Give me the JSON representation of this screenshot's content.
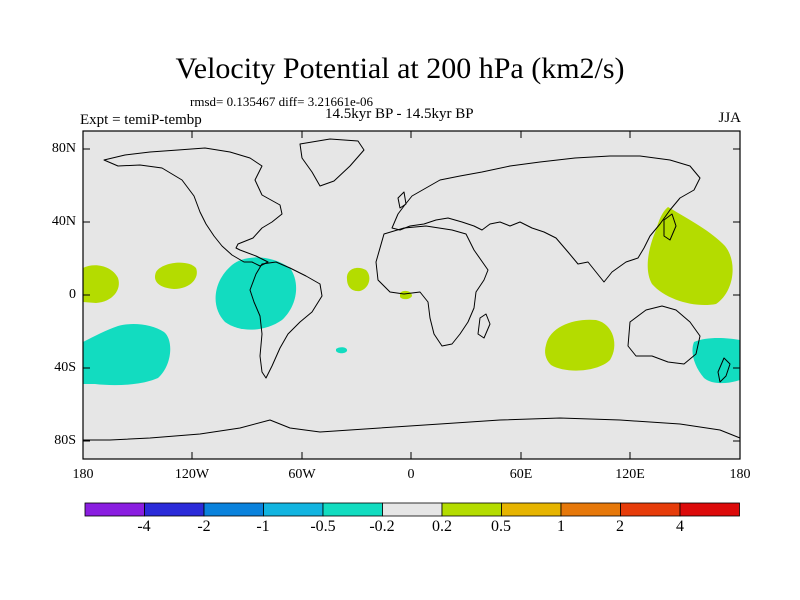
{
  "title": "Velocity Potential at 200 hPa (km2/s)",
  "stats": "rmsd= 0.135467 diff= 3.21661e-06",
  "experiment": "Expt = temiP-tembp",
  "period": "14.5kyr BP - 14.5kyr BP",
  "season": "JJA",
  "map": {
    "background_color": "#e6e6e6",
    "coast_color": "#000000",
    "lat_labels": [
      "80N",
      "40N",
      "0",
      "40S",
      "80S"
    ],
    "lon_labels": [
      "180",
      "120W",
      "60W",
      "0",
      "60E",
      "120E",
      "180"
    ]
  },
  "colorbar": {
    "colors": [
      "#8a1ee0",
      "#2b2bd9",
      "#0a82dc",
      "#12b4e0",
      "#12dcc0",
      "#e6e6e6",
      "#b4dc00",
      "#e6b400",
      "#e6780a",
      "#e63c0a",
      "#dc0a0a"
    ],
    "labels": [
      "-4",
      "-2",
      "-1",
      "-0.5",
      "-0.2",
      "0.2",
      "0.5",
      "1",
      "2",
      "4"
    ]
  },
  "field_colors": {
    "negative": "#12dcc0",
    "positive": "#b4dc00"
  }
}
